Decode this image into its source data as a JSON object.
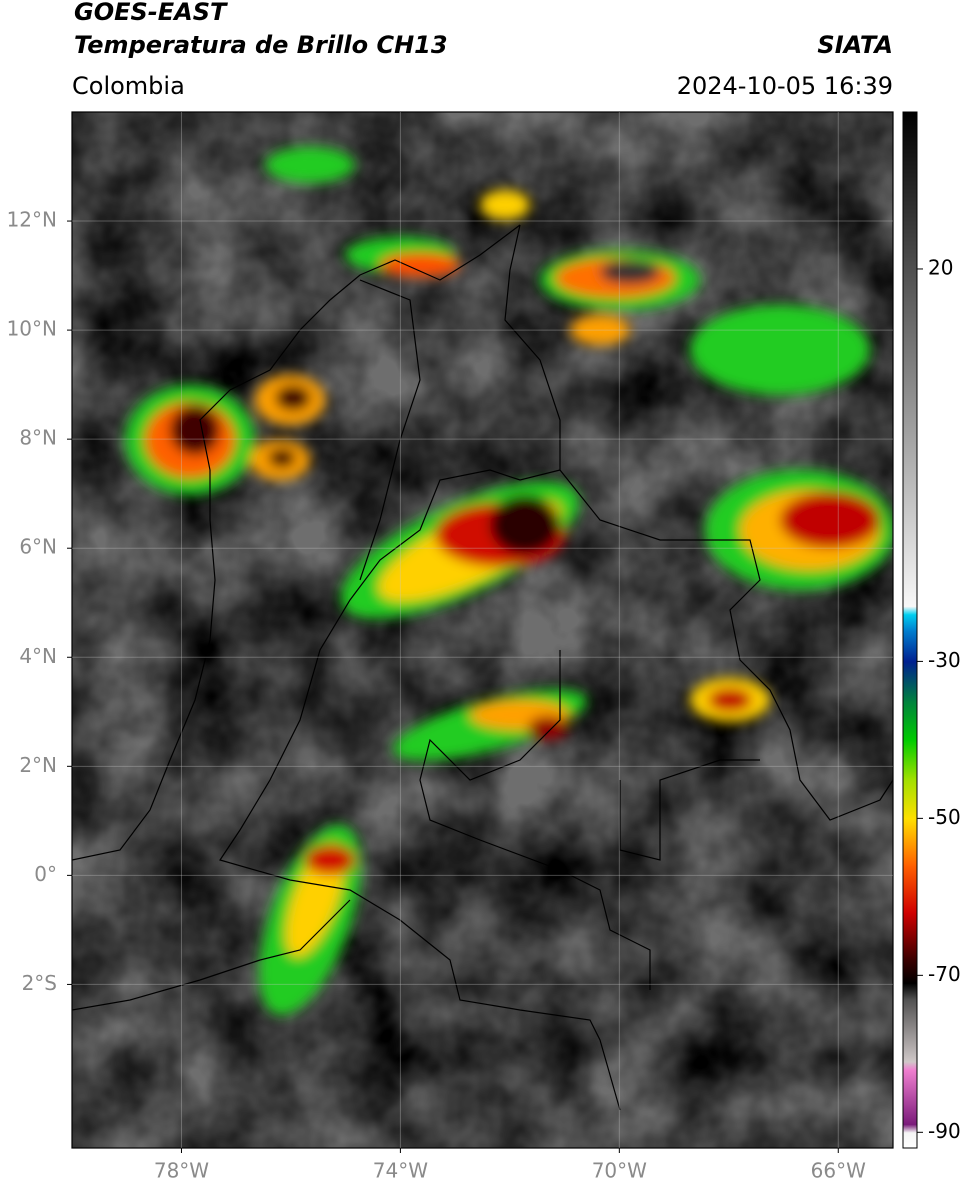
{
  "header": {
    "satellite": "GOES-EAST",
    "product": "Temperatura de Brillo CH13",
    "source": "SIATA",
    "region": "Colombia",
    "datetime": "2024-10-05 16:39"
  },
  "map": {
    "xlim": [
      -80,
      -65
    ],
    "ylim": [
      -5,
      14
    ],
    "grid": true,
    "xticks": [
      {
        "value": -78,
        "label": "78°W"
      },
      {
        "value": -74,
        "label": "74°W"
      },
      {
        "value": -70,
        "label": "70°W"
      },
      {
        "value": -66,
        "label": "66°W"
      }
    ],
    "yticks": [
      {
        "value": 12,
        "label": "12°N"
      },
      {
        "value": 10,
        "label": "10°N"
      },
      {
        "value": 8,
        "label": "8°N"
      },
      {
        "value": 6,
        "label": "6°N"
      },
      {
        "value": 4,
        "label": "4°N"
      },
      {
        "value": 2,
        "label": "2°N"
      },
      {
        "value": 0,
        "label": "0°"
      },
      {
        "value": -2,
        "label": "2°S"
      }
    ]
  },
  "colorbar": {
    "lim": [
      -92,
      40
    ],
    "ticks": [
      20,
      -30,
      -50,
      -70,
      -90
    ],
    "colormap": [
      {
        "value": -92,
        "color": "#ffffff"
      },
      {
        "value": -90,
        "color": "#f4f4f4"
      },
      {
        "value": -89,
        "color": "#7a1a7a"
      },
      {
        "value": -82,
        "color": "#f080d0"
      },
      {
        "value": -81,
        "color": "#d0c8c8"
      },
      {
        "value": -73,
        "color": "#505050"
      },
      {
        "value": -71,
        "color": "#000000"
      },
      {
        "value": -68,
        "color": "#3a0000"
      },
      {
        "value": -62,
        "color": "#d00000"
      },
      {
        "value": -56,
        "color": "#ff6000"
      },
      {
        "value": -50,
        "color": "#ffe000"
      },
      {
        "value": -45,
        "color": "#a0e000"
      },
      {
        "value": -40,
        "color": "#00cc00"
      },
      {
        "value": -35,
        "color": "#008040"
      },
      {
        "value": -30,
        "color": "#002090"
      },
      {
        "value": -26,
        "color": "#0080d0"
      },
      {
        "value": -24,
        "color": "#00d0f0"
      },
      {
        "value": -23,
        "color": "#f8f8f8"
      },
      {
        "value": 40,
        "color": "#000000"
      }
    ]
  }
}
